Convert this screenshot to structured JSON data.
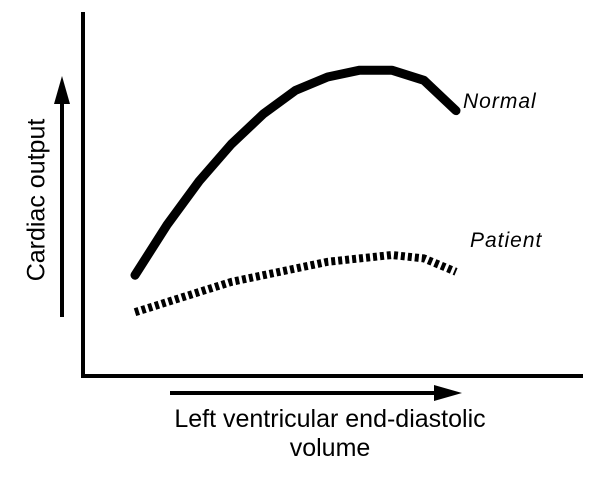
{
  "chart_data": {
    "type": "line",
    "title": "",
    "xlabel": [
      "Left ventricular end-diastolic",
      "volume"
    ],
    "ylabel": "Cardiac output",
    "grid": false,
    "axes_numeric_ticks": false,
    "legend_placement": "direct labels at line ends (right)",
    "x": [
      0.0,
      0.1,
      0.2,
      0.3,
      0.4,
      0.5,
      0.6,
      0.7,
      0.8,
      0.9,
      1.0
    ],
    "series": [
      {
        "name": "Normal",
        "style": "solid",
        "color": "#000000",
        "values": [
          0.3,
          0.45,
          0.58,
          0.69,
          0.78,
          0.85,
          0.89,
          0.91,
          0.91,
          0.88,
          0.79
        ]
      },
      {
        "name": "Patient",
        "style": "dashed",
        "color": "#000000",
        "values": [
          0.19,
          0.22,
          0.25,
          0.28,
          0.3,
          0.32,
          0.34,
          0.35,
          0.36,
          0.35,
          0.31
        ]
      }
    ]
  }
}
